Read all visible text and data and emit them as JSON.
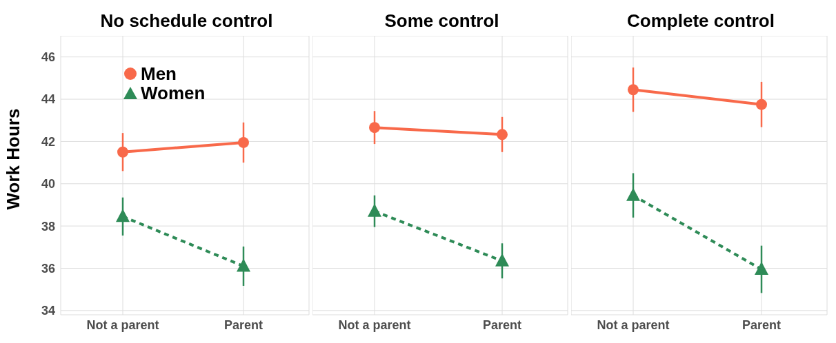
{
  "chart_data": [
    {
      "type": "line",
      "title": "No schedule control",
      "ylabel": "Work Hours",
      "categories": [
        "Not a parent",
        "Parent"
      ],
      "ylim": [
        33.8,
        47
      ],
      "yticks": [
        34,
        36,
        38,
        40,
        42,
        44,
        46
      ],
      "grid": true,
      "legend": "top left",
      "series": [
        {
          "name": "Men",
          "color": "#f8694a",
          "marker": "circle",
          "line_style": "solid",
          "values": [
            41.5,
            41.95
          ],
          "errors": [
            0.9,
            0.95
          ]
        },
        {
          "name": "Women",
          "color": "#2e8b57",
          "marker": "triangle",
          "line_style": "dashed",
          "values": [
            38.45,
            36.1
          ],
          "errors": [
            0.9,
            0.93
          ]
        }
      ]
    },
    {
      "type": "line",
      "title": "Some control",
      "categories": [
        "Not a parent",
        "Parent"
      ],
      "ylim": [
        33.8,
        47
      ],
      "yticks": [
        34,
        36,
        38,
        40,
        42,
        44,
        46
      ],
      "grid": true,
      "tick_labels": "x",
      "series": [
        {
          "color": "#f8694a",
          "marker": "circle",
          "line_style": "solid",
          "values": [
            42.66,
            42.33
          ],
          "errors": [
            0.78,
            0.83
          ]
        },
        {
          "color": "#2e8b57",
          "marker": "triangle",
          "line_style": "dashed",
          "values": [
            38.7,
            36.35
          ],
          "errors": [
            0.75,
            0.83
          ]
        }
      ]
    },
    {
      "type": "line",
      "title": "Complete control",
      "categories": [
        "Not a parent",
        "Parent"
      ],
      "ylim": [
        33.8,
        47
      ],
      "yticks": [
        34,
        36,
        38,
        40,
        42,
        44,
        46
      ],
      "grid": true,
      "tick_labels": "x",
      "series": [
        {
          "color": "#f8694a",
          "marker": "circle",
          "line_style": "solid",
          "values": [
            44.45,
            43.75
          ],
          "errors": [
            1.05,
            1.07
          ]
        },
        {
          "color": "#2e8b57",
          "marker": "triangle",
          "line_style": "dashed",
          "values": [
            39.45,
            35.95
          ],
          "errors": [
            1.05,
            1.12
          ]
        }
      ]
    }
  ]
}
